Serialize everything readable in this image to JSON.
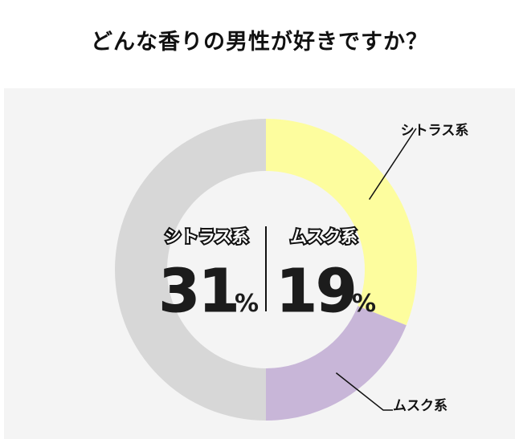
{
  "page": {
    "title": "どんな香りの男性が好きですか？"
  },
  "colors": {
    "citrus": "#fdfd9e",
    "musk": "#c8b6d8",
    "other": "#d7d7d7",
    "panel_background": "#f4f4f4",
    "text": "#111111"
  },
  "chart_data": {
    "type": "pie",
    "title": "どんな香りの男性が好きですか？",
    "slices": [
      {
        "label": "シトラス系",
        "value": 31,
        "color": "#fdfd9e"
      },
      {
        "label": "ムスク系",
        "value": 19,
        "color": "#c8b6d8"
      },
      {
        "label": "",
        "value": 50,
        "color": "#d7d7d7"
      }
    ],
    "center_stats": [
      {
        "label": "シトラス系",
        "value": "31",
        "unit": "%"
      },
      {
        "label": "ムスク系",
        "value": "19",
        "unit": "%"
      }
    ],
    "callouts": [
      {
        "label": "シトラス系"
      },
      {
        "label": "ムスク系"
      }
    ]
  }
}
